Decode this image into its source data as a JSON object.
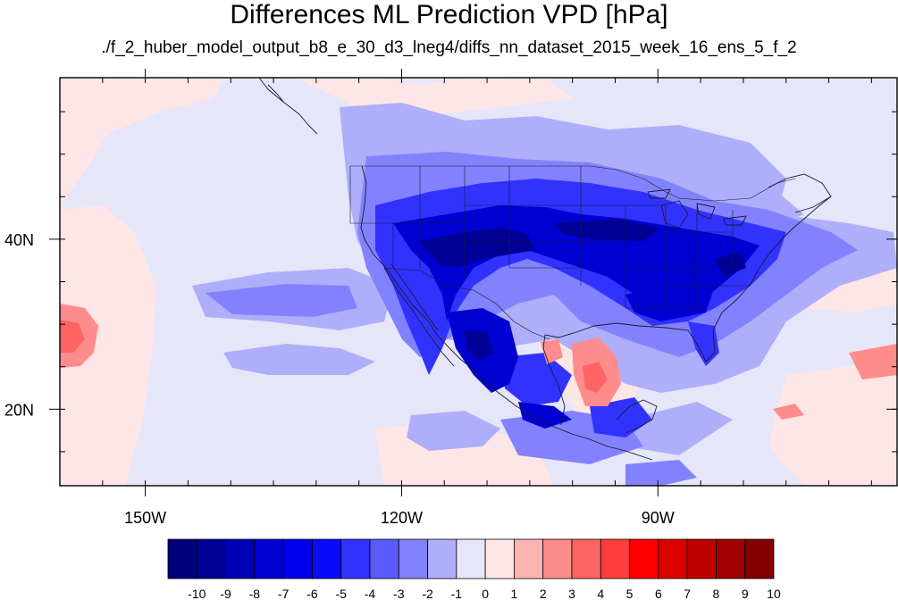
{
  "title": "Differences ML Prediction VPD [hPa]",
  "subtitle": "./f_2_huber_model_output_b8_e_30_d3_lneg4/diffs_nn_dataset_2015_week_16_ens_5_f_2",
  "map": {
    "lon_range": [
      -160,
      -62
    ],
    "lat_range": [
      11,
      59
    ],
    "lat_ticks": [
      {
        "value": 40,
        "label": "40N"
      },
      {
        "value": 20,
        "label": "20N"
      }
    ],
    "lon_ticks": [
      {
        "value": -150,
        "label": "150W"
      },
      {
        "value": -120,
        "label": "120W"
      },
      {
        "value": -90,
        "label": "90W"
      }
    ]
  },
  "colorbar": {
    "levels": [
      "-10",
      "-9",
      "-8",
      "-7",
      "-6",
      "-5",
      "-4",
      "-3",
      "-2",
      "-1",
      "0",
      "1",
      "2",
      "3",
      "4",
      "5",
      "6",
      "7",
      "8",
      "9",
      "10"
    ],
    "colors": [
      "#00007a",
      "#000096",
      "#0000b4",
      "#0000d2",
      "#0000ee",
      "#0a0aff",
      "#3232ff",
      "#5a5aff",
      "#8282ff",
      "#aeaefa",
      "#e6e6fa",
      "#ffe6e6",
      "#ffb4b4",
      "#ff8c8c",
      "#ff6464",
      "#ff3c3c",
      "#ff0000",
      "#dc0000",
      "#be0000",
      "#a00000",
      "#820000"
    ]
  }
}
